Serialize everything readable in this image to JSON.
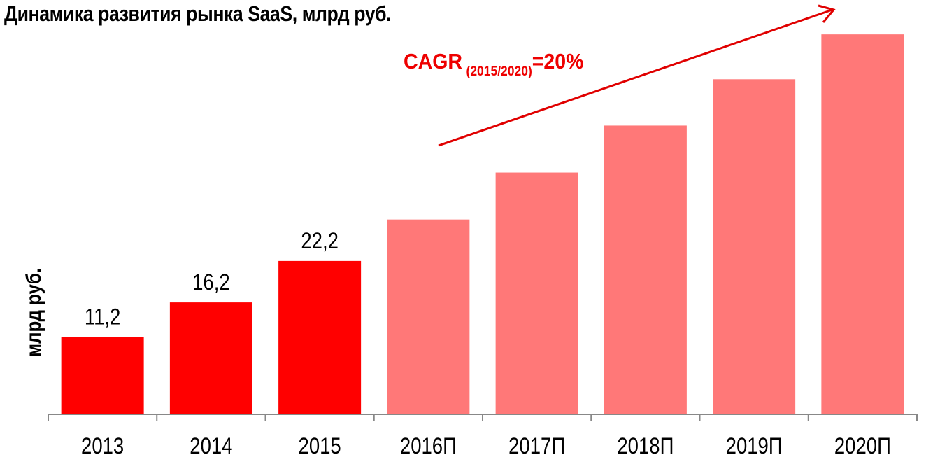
{
  "chart_data": {
    "type": "bar",
    "title": "Динамика развития рынка SaaS, млрд руб.",
    "xlabel": "",
    "ylabel": "млрд руб.",
    "categories": [
      "2013",
      "2014",
      "2015",
      "2016П",
      "2017П",
      "2018П",
      "2019П",
      "2020П"
    ],
    "values": [
      11.2,
      16.2,
      22.2,
      28.2,
      35.0,
      41.8,
      48.5,
      55.0
    ],
    "value_labels": [
      "11,2",
      "16,2",
      "22,2",
      "",
      "",
      "",
      "",
      ""
    ],
    "series_type": [
      "actual",
      "actual",
      "actual",
      "forecast",
      "forecast",
      "forecast",
      "forecast",
      "forecast"
    ],
    "ylim": [
      0,
      60
    ],
    "grid": false,
    "legend": null,
    "annotations": [
      {
        "text": "CAGR (2015/2020)=20%",
        "type": "trend-arrow"
      }
    ]
  },
  "title": "Динамика развития рынка SaaS, млрд руб.",
  "ylabel": "млрд руб.",
  "cagr": {
    "main": "CAGR",
    "sub": "(2015/2020)",
    "value": "=20%"
  },
  "colors": {
    "actual": "#ff0000",
    "forecast": "#ff7878",
    "arrow": "#e00000",
    "axis": "#888888",
    "annotation": "#ee0000"
  }
}
